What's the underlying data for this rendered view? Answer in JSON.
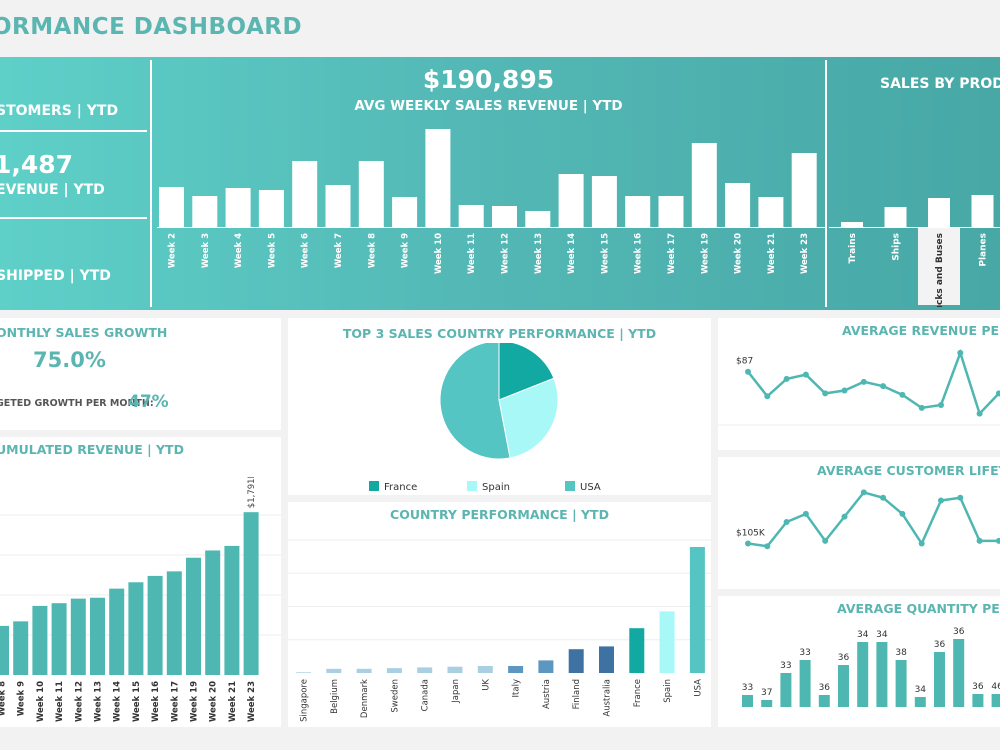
{
  "header": {
    "title": "ORMANCE DASHBOARD"
  },
  "banner": {
    "customers_label": "STOMERS | YTD",
    "revenue_value": "1,487",
    "revenue_label": "EVENUE | YTD",
    "shipped_label": "SHIPPED | YTD",
    "weekly_value": "$190,895",
    "weekly_label": "AVG WEEKLY SALES REVENUE | YTD",
    "product_title": "SALES BY PRODU"
  },
  "panels": {
    "monthly_title": "ONTHLY SALES GROWTH",
    "monthly_value": "75.0%",
    "budget_label": "GETED GROWTH PER MONTH:",
    "budget_value": "47%",
    "cumulative_title": "UMULATED REVENUE | YTD",
    "pie_title": "TOP 3 SALES COUNTRY PERFORMANCE | YTD",
    "country_title": "COUNTRY PERFORMANCE | YTD",
    "arpu_title": "AVERAGE REVENUE PER U",
    "clv_title": "AVERAGE CUSTOMER LIFETIME",
    "qty_title": "AVERAGE QUANTITY PER W"
  },
  "colors": {
    "teal": "#4fb7b1",
    "white": "#ffffff",
    "france": "#12a9a2",
    "spain": "#a8f8f7",
    "usa": "#55c5c4",
    "navy": "#3e72a2",
    "steel": "#5d96bf",
    "pale_blue": "#a9cfe3"
  },
  "chart_data": [
    {
      "id": "weekly",
      "type": "bar",
      "categories": [
        "Week 2",
        "Week 3",
        "Week 4",
        "Week 5",
        "Week 6",
        "Week 7",
        "Week 8",
        "Week 9",
        "Week 10",
        "Week 11",
        "Week 12",
        "Week 13",
        "Week 14",
        "Week 15",
        "Week 16",
        "Week 17",
        "Week 19",
        "Week 20",
        "Week 21",
        "Week 23"
      ],
      "values": [
        40,
        31,
        39,
        37,
        66,
        42,
        66,
        30,
        98,
        22,
        21,
        16,
        53,
        51,
        31,
        31,
        84,
        44,
        30,
        74
      ],
      "ylim": [
        0,
        100
      ],
      "grid": false
    },
    {
      "id": "products",
      "type": "bar",
      "categories": [
        "Trains",
        "Ships",
        "Trucks and Buses",
        "Planes"
      ],
      "values": [
        5,
        20,
        29,
        32
      ],
      "ylim": [
        0,
        100
      ],
      "grid": false
    },
    {
      "id": "cumulative",
      "type": "bar",
      "categories": [
        "Week 8",
        "Week 9",
        "Week 10",
        "Week 11",
        "Week 12",
        "Week 13",
        "Week 14",
        "Week 15",
        "Week 16",
        "Week 17",
        "Week 19",
        "Week 20",
        "Week 21",
        "Week 23"
      ],
      "values": [
        540,
        590,
        760,
        790,
        840,
        850,
        950,
        1020,
        1090,
        1140,
        1290,
        1370,
        1420,
        1791
      ],
      "data_labels": [
        "",
        "",
        "",
        "",
        "",
        "",
        "",
        "",
        "",
        "",
        "",
        "",
        "",
        "$1,791K"
      ],
      "ylim": [
        0,
        2200
      ],
      "grid": true
    },
    {
      "id": "pie",
      "type": "pie",
      "labels": [
        "France",
        "Spain",
        "USA"
      ],
      "values": [
        19,
        28,
        53
      ],
      "legend": "bottom"
    },
    {
      "id": "countries",
      "type": "bar",
      "categories": [
        "Singapore",
        "Belgium",
        "Denmark",
        "Sweden",
        "Canada",
        "Japan",
        "UK",
        "Italy",
        "Austria",
        "Finland",
        "Australia",
        "France",
        "Spain",
        "USA"
      ],
      "values": [
        0.5,
        3,
        3,
        3.5,
        4,
        4.5,
        5,
        5,
        9,
        17,
        19,
        32,
        44,
        90
      ],
      "ylim": [
        0,
        100
      ],
      "grid": true
    },
    {
      "id": "arpu",
      "type": "line",
      "values": [
        87,
        70,
        82,
        85,
        72,
        74,
        80,
        77,
        71,
        62,
        64,
        100,
        58,
        72
      ],
      "data_labels": [
        "$87",
        "",
        "",
        "",
        "",
        "",
        "",
        "",
        "",
        "",
        "",
        "",
        "",
        ""
      ],
      "ylim": [
        55,
        102
      ],
      "grid": true
    },
    {
      "id": "clv",
      "type": "line",
      "values": [
        105,
        104,
        113,
        116,
        106,
        115,
        124,
        122,
        116,
        105,
        121,
        122,
        106,
        106
      ],
      "data_labels": [
        "$105K",
        "",
        "",
        "",
        "",
        "",
        "",
        "",
        "",
        "",
        "",
        "",
        "",
        ""
      ],
      "ylim": [
        100,
        126
      ],
      "grid": false
    },
    {
      "id": "qty",
      "type": "bar",
      "values": [
        33,
        37,
        33,
        33,
        36,
        36,
        34,
        34,
        38,
        34,
        36,
        36,
        36,
        46
      ],
      "heights": [
        12,
        7,
        34,
        47,
        12,
        42,
        65,
        65,
        47,
        10,
        55,
        68,
        13,
        13
      ],
      "data_labels": [
        "33",
        "37",
        "33",
        "33",
        "36",
        "36",
        "34",
        "34",
        "38",
        "34",
        "36",
        "36",
        "36",
        "46"
      ],
      "ylim": [
        0,
        80
      ],
      "grid": false
    }
  ]
}
